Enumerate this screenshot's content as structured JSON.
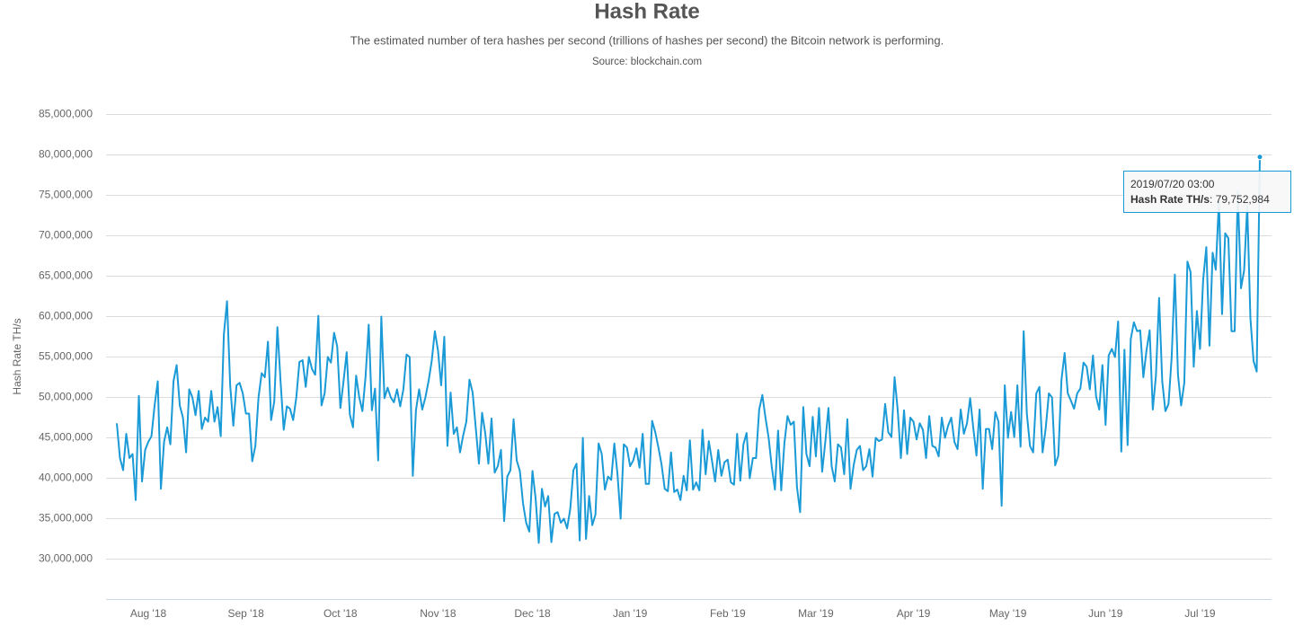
{
  "chart_data": {
    "type": "line",
    "title": "Hash Rate",
    "subtitle": "The estimated number of tera hashes per second (trillions of hashes per second) the Bitcoin network is performing.",
    "source": "Source: blockchain.com",
    "y_label": "Hash Rate TH/s",
    "ylim": [
      25000000,
      85000000
    ],
    "yticks": [
      {
        "value": 30000000,
        "label": "30,000,000"
      },
      {
        "value": 35000000,
        "label": "35,000,000"
      },
      {
        "value": 40000000,
        "label": "40,000,000"
      },
      {
        "value": 45000000,
        "label": "45,000,000"
      },
      {
        "value": 50000000,
        "label": "50,000,000"
      },
      {
        "value": 55000000,
        "label": "55,000,000"
      },
      {
        "value": 60000000,
        "label": "60,000,000"
      },
      {
        "value": 65000000,
        "label": "65,000,000"
      },
      {
        "value": 70000000,
        "label": "70,000,000"
      },
      {
        "value": 75000000,
        "label": "75,000,000"
      },
      {
        "value": 80000000,
        "label": "80,000,000"
      },
      {
        "value": 85000000,
        "label": "85,000,000"
      }
    ],
    "grid": true,
    "color": "#1a9ad6",
    "categories": [
      null,
      null,
      null,
      null,
      null,
      null,
      null,
      null,
      null,
      null,
      "Aug '18",
      null,
      null,
      null,
      null,
      null,
      null,
      null,
      null,
      null,
      null,
      null,
      null,
      null,
      null,
      null,
      null,
      null,
      null,
      null,
      null,
      null,
      null,
      null,
      null,
      null,
      null,
      null,
      null,
      null,
      null,
      "Sep '18",
      null,
      null,
      null,
      null,
      null,
      null,
      null,
      null,
      null,
      null,
      null,
      null,
      null,
      null,
      null,
      null,
      null,
      null,
      null,
      null,
      null,
      null,
      null,
      null,
      null,
      null,
      null,
      null,
      null,
      "Oct '18",
      null,
      null,
      null,
      null,
      null,
      null,
      null,
      null,
      null,
      null,
      null,
      null,
      null,
      null,
      null,
      null,
      null,
      null,
      null,
      null,
      null,
      null,
      null,
      null,
      null,
      null,
      null,
      null,
      null,
      null,
      "Nov '18",
      null,
      null,
      null,
      null,
      null,
      null,
      null,
      null,
      null,
      null,
      null,
      null,
      null,
      null,
      null,
      null,
      null,
      null,
      null,
      null,
      null,
      null,
      null,
      null,
      null,
      null,
      null,
      null,
      null,
      "Dec '18",
      null,
      null,
      null,
      null,
      null,
      null,
      null,
      null,
      null,
      null,
      null,
      null,
      null,
      null,
      null,
      null,
      null,
      null,
      null,
      null,
      null,
      null,
      null,
      null,
      null,
      null,
      null,
      null,
      null,
      null,
      "Jan '19",
      null,
      null,
      null,
      null,
      null,
      null,
      null,
      null,
      null,
      null,
      null,
      null,
      null,
      null,
      null,
      null,
      null,
      null,
      null,
      null,
      null,
      null,
      null,
      null,
      null,
      null,
      null,
      null,
      null,
      null,
      "Feb '19",
      null,
      null,
      null,
      null,
      null,
      null,
      null,
      null,
      null,
      null,
      null,
      null,
      null,
      null,
      null,
      null,
      null,
      null,
      null,
      null,
      null,
      null,
      null,
      null,
      null,
      null,
      null,
      "Mar '19",
      null,
      null,
      null,
      null,
      null,
      null,
      null,
      null,
      null,
      null,
      null,
      null,
      null,
      null,
      null,
      null,
      null,
      null,
      null,
      null,
      null,
      null,
      null,
      null,
      null,
      null,
      null,
      null,
      null,
      null,
      "Apr '19",
      null,
      null,
      null,
      null,
      null,
      null,
      null,
      null,
      null,
      null,
      null,
      null,
      null,
      null,
      null,
      null,
      null,
      null,
      null,
      null,
      null,
      null,
      null,
      null,
      null,
      null,
      null,
      null,
      null,
      "May '19",
      null,
      null,
      null,
      null,
      null,
      null,
      null,
      null,
      null,
      null,
      null,
      null,
      null,
      null,
      null,
      null,
      null,
      null,
      null,
      null,
      null,
      null,
      null,
      null,
      null,
      null,
      null,
      null,
      null,
      null,
      "Jun '19",
      null,
      null,
      null,
      null,
      null,
      null,
      null,
      null,
      null,
      null,
      null,
      null,
      null,
      null,
      null,
      null,
      null,
      null,
      null,
      null,
      null,
      null,
      null,
      null,
      null,
      null,
      null,
      null,
      null,
      "Jul '19",
      null,
      null,
      null,
      null,
      null,
      null,
      null,
      null,
      null,
      null,
      null,
      null,
      null,
      null,
      null,
      null,
      null,
      null,
      null
    ],
    "values": [
      46800000.0,
      42500000.0,
      41000000.0,
      45500000.0,
      42500000.0,
      43000000.0,
      37300000.0,
      50200000.0,
      39600000.0,
      43500000.0,
      44500000.0,
      45200000.0,
      49000000.0,
      52000000.0,
      38700000.0,
      44500000.0,
      46300000.0,
      44200000.0,
      52000000.0,
      54000000.0,
      49000000.0,
      47500000.0,
      43200000.0,
      51000000.0,
      50000000.0,
      47800000.0,
      50800000.0,
      46100000.0,
      47500000.0,
      47000000.0,
      50800000.0,
      47000000.0,
      48800000.0,
      45200000.0,
      57800000.0,
      61900000.0,
      51500000.0,
      46500000.0,
      51500000.0,
      51800000.0,
      50500000.0,
      48000000.0,
      48000000.0,
      42100000.0,
      44000000.0,
      50000000.0,
      53000000.0,
      52500000.0,
      56900000.0,
      47200000.0,
      49500000.0,
      58700000.0,
      52000000.0,
      46000000.0,
      48900000.0,
      48600000.0,
      47200000.0,
      50000000.0,
      54400000.0,
      54600000.0,
      51300000.0,
      55000000.0,
      53500000.0,
      52800000.0,
      60100000.0,
      49000000.0,
      50500000.0,
      55000000.0,
      54300000.0,
      58000000.0,
      56300000.0,
      48700000.0,
      52000000.0,
      55600000.0,
      47900000.0,
      46300000.0,
      52700000.0,
      50000000.0,
      48300000.0,
      52600000.0,
      59000000.0,
      48400000.0,
      51100000.0,
      42200000.0,
      60000000.0,
      49900000.0,
      51200000.0,
      50000000.0,
      49400000.0,
      51000000.0,
      48900000.0,
      51000000.0,
      55300000.0,
      55000000.0,
      40300000.0,
      48400000.0,
      51000000.0,
      48500000.0,
      50000000.0,
      52000000.0,
      54500000.0,
      58200000.0,
      55800000.0,
      51500000.0,
      57500000.0,
      44000000.0,
      50600000.0,
      45500000.0,
      46300000.0,
      43200000.0,
      45300000.0,
      47000000.0,
      52200000.0,
      50600000.0,
      46200000.0,
      41800000.0,
      48100000.0,
      45600000.0,
      41800000.0,
      47400000.0,
      40700000.0,
      41500000.0,
      43500000.0,
      34700000.0,
      40200000.0,
      41000000.0,
      47300000.0,
      42200000.0,
      40900000.0,
      36900000.0,
      34500000.0,
      33400000.0,
      40900000.0,
      37500000.0,
      32000000.0,
      38700000.0,
      36500000.0,
      37800000.0,
      32100000.0,
      35600000.0,
      35800000.0,
      34500000.0,
      35000000.0,
      33800000.0,
      36200000.0,
      41000000.0,
      41800000.0,
      32300000.0,
      45000000.0,
      32500000.0,
      37800000.0,
      34200000.0,
      35500000.0,
      44300000.0,
      43000000.0,
      38600000.0,
      40200000.0,
      39800000.0,
      44300000.0,
      40500000.0,
      35000000.0,
      44200000.0,
      43800000.0,
      41500000.0,
      42200000.0,
      43700000.0,
      41300000.0,
      45500000.0,
      39300000.0,
      39300000.0,
      47100000.0,
      45700000.0,
      43800000.0,
      41700000.0,
      38700000.0,
      38400000.0,
      43200000.0,
      38300000.0,
      38600000.0,
      37300000.0,
      40300000.0,
      38500000.0,
      44700000.0,
      38600000.0,
      39500000.0,
      38500000.0,
      46000000.0,
      40500000.0,
      44600000.0,
      42200000.0,
      39600000.0,
      43500000.0,
      40300000.0,
      42000000.0,
      42300000.0,
      39500000.0,
      39200000.0,
      45500000.0,
      39700000.0,
      44200000.0,
      45600000.0,
      40000000.0,
      42500000.0,
      42500000.0,
      48500000.0,
      50300000.0,
      47500000.0,
      45000000.0,
      41400000.0,
      38600000.0,
      45900000.0,
      38500000.0,
      44300000.0,
      47700000.0,
      46600000.0,
      47000000.0,
      38900000.0,
      35800000.0,
      48800000.0,
      43000000.0,
      41500000.0,
      47600000.0,
      42700000.0,
      48700000.0,
      40800000.0,
      44500000.0,
      48700000.0,
      41500000.0,
      39600000.0,
      44200000.0,
      43800000.0,
      40500000.0,
      47300000.0,
      38700000.0,
      41600000.0,
      43500000.0,
      44000000.0,
      41000000.0,
      41500000.0,
      43600000.0,
      40200000.0,
      45000000.0,
      44600000.0,
      44800000.0,
      49200000.0,
      45700000.0,
      45100000.0,
      52500000.0,
      48400000.0,
      42500000.0,
      48400000.0,
      43000000.0,
      47500000.0,
      47000000.0,
      44800000.0,
      46800000.0,
      46000000.0,
      42500000.0,
      47700000.0,
      44000000.0,
      43800000.0,
      42700000.0,
      47500000.0,
      45000000.0,
      46500000.0,
      47500000.0,
      44500000.0,
      43600000.0,
      48500000.0,
      45500000.0,
      46800000.0,
      49900000.0,
      46200000.0,
      42800000.0,
      48500000.0,
      38700000.0,
      46100000.0,
      46100000.0,
      43600000.0,
      48200000.0,
      47000000.0,
      36600000.0,
      51500000.0,
      45000000.0,
      48200000.0,
      45100000.0,
      51500000.0,
      43900000.0,
      58200000.0,
      48000000.0,
      44000000.0,
      43200000.0,
      50500000.0,
      51300000.0,
      43200000.0,
      46200000.0,
      50500000.0,
      50000000.0,
      41600000.0,
      42800000.0,
      52200000.0,
      55500000.0,
      50500000.0,
      49600000.0,
      48600000.0,
      50500000.0,
      51100000.0,
      54300000.0,
      53800000.0,
      51000000.0,
      55200000.0,
      50100000.0,
      48500000.0,
      54000000.0,
      46600000.0,
      55200000.0,
      56000000.0,
      55000000.0,
      59400000.0,
      43300000.0,
      55900000.0,
      44100000.0,
      57200000.0,
      59300000.0,
      58200000.0,
      58300000.0,
      52500000.0,
      55800000.0,
      58300000.0,
      48500000.0,
      52700000.0,
      62300000.0,
      52000000.0,
      48300000.0,
      49200000.0,
      55000000.0,
      65200000.0,
      52800000.0,
      49000000.0,
      51800000.0,
      66800000.0,
      65500000.0,
      53800000.0,
      60700000.0,
      56000000.0,
      64600000.0,
      68600000.0,
      56400000.0,
      67900000.0,
      65800000.0,
      74300000.0,
      60300000.0,
      70300000.0,
      69700000.0,
      58200000.0,
      58200000.0,
      75500000.0,
      63500000.0,
      65700000.0,
      73700000.0,
      59800000.0,
      54500000.0,
      53200000.0,
      79752984
    ],
    "tooltip": {
      "date": "2019/07/20 03:00",
      "series": "Hash Rate TH/s",
      "value_label": "79,752,984"
    }
  }
}
